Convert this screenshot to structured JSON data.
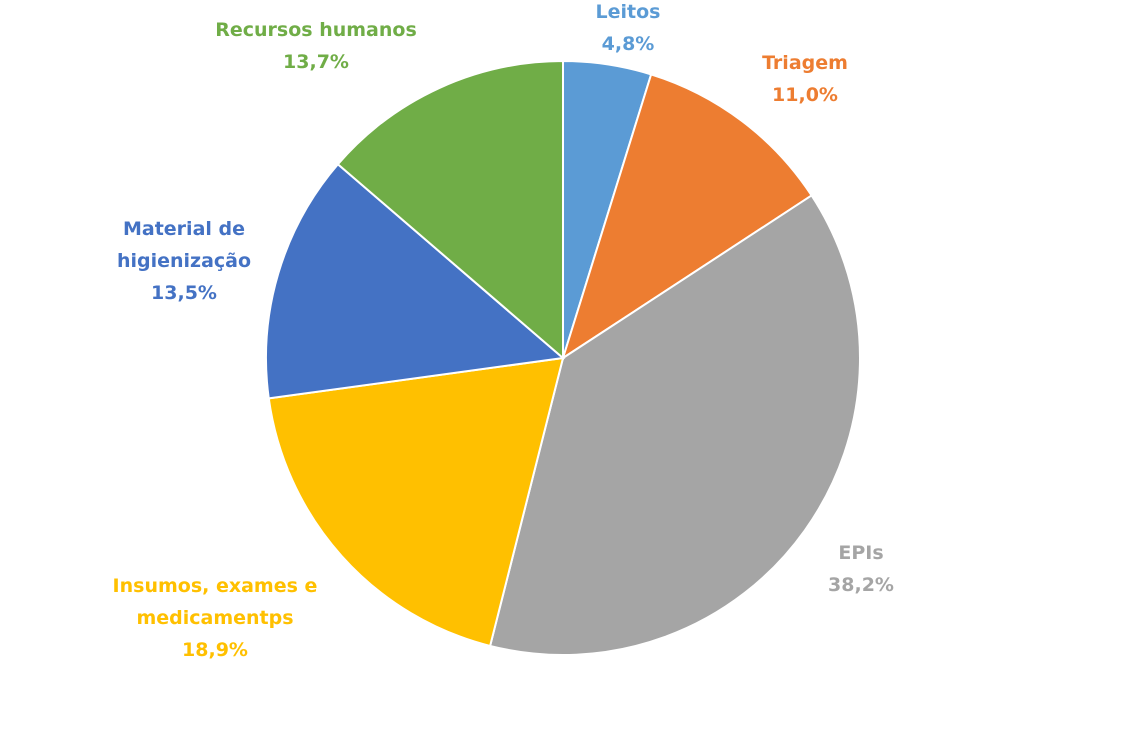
{
  "chart_data": {
    "type": "pie",
    "title": "",
    "slices": [
      {
        "label": [
          "Leitos"
        ],
        "value": 4.8,
        "value_label": "4,8%",
        "color": "#5b9bd5"
      },
      {
        "label": [
          "Triagem"
        ],
        "value": 11.0,
        "value_label": "11,0%",
        "color": "#ed7d31"
      },
      {
        "label": [
          "EPIs"
        ],
        "value": 38.2,
        "value_label": "38,2%",
        "color": "#a5a5a5"
      },
      {
        "label": [
          "Insumos, exames e",
          "medicamentps"
        ],
        "value": 18.9,
        "value_label": "18,9%",
        "color": "#ffc000"
      },
      {
        "label": [
          "Material de",
          "higienização"
        ],
        "value": 13.5,
        "value_label": "13,5%",
        "color": "#4472c4"
      },
      {
        "label": [
          "Recursos humanos"
        ],
        "value": 13.7,
        "value_label": "13,7%",
        "color": "#70ad47"
      }
    ],
    "start_angle_deg": 0,
    "direction": "clockwise",
    "legend": "none",
    "slice_border_color": "#ffffff"
  }
}
